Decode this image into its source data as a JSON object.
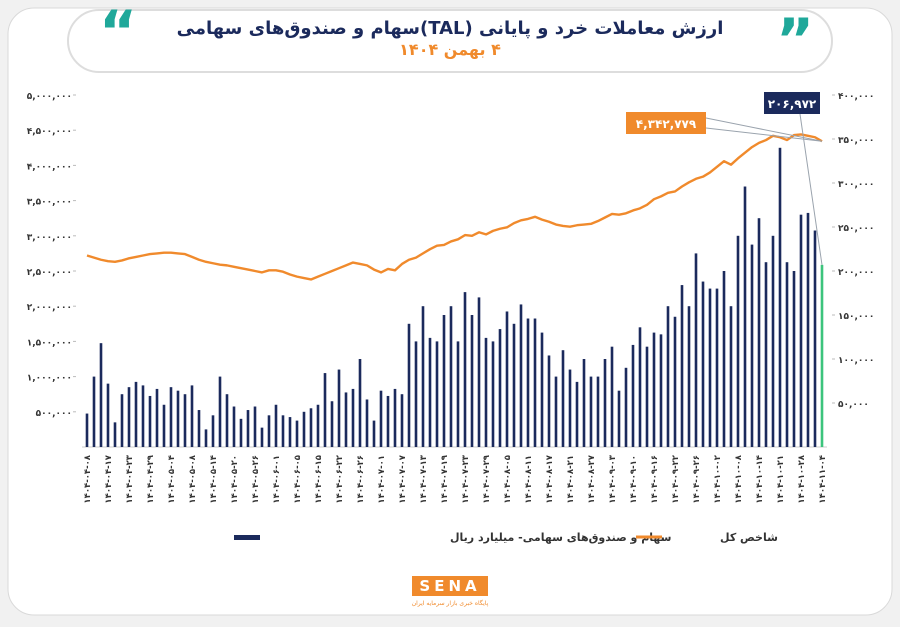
{
  "chart_data": {
    "type": "bar-line",
    "title": "ارزش معاملات خرد و پایانی (TAL)سهام و صندوق‌های سهامی",
    "subtitle": "۴ بهمن ۱۴۰۴",
    "source": "SENA",
    "source_tagline": "پایگاه خبری بازار سرمایه ایران",
    "annotations": [
      "۴,۳۴۲,۷۷۹",
      "۲۰۶,۹۷۲"
    ],
    "categories": [
      "۱۴۰۴-۰۴-۰۸",
      null,
      null,
      "۱۴۰۴-۰۴-۱۷",
      null,
      null,
      "۱۴۰۴-۰۴-۲۳",
      null,
      null,
      "۱۴۰۴-۰۴-۲۹",
      null,
      null,
      "۱۴۰۴-۰۵-۰۴",
      null,
      null,
      "۱۴۰۴-۰۵-۰۸",
      null,
      null,
      "۱۴۰۴-۰۵-۱۴",
      null,
      null,
      "۱۴۰۴-۰۵-۲۰",
      null,
      null,
      "۱۴۰۴-۰۵-۲۶",
      null,
      null,
      "۱۴۰۴-۰۶-۰۱",
      null,
      null,
      "۱۴۰۴-۰۶-۰۵",
      null,
      null,
      "۱۴۰۴-۰۶-۱۵",
      null,
      null,
      "۱۴۰۴-۰۶-۲۲",
      null,
      null,
      "۱۴۰۴-۰۶-۲۶",
      null,
      null,
      "۱۴۰۴-۰۷-۰۱",
      null,
      null,
      "۱۴۰۴-۰۷-۰۷",
      null,
      null,
      "۱۴۰۴-۰۷-۱۳",
      null,
      null,
      "۱۴۰۴-۰۷-۱۹",
      null,
      null,
      "۱۴۰۴-۰۷-۲۳",
      null,
      null,
      "۱۴۰۴-۰۷-۲۹",
      null,
      null,
      "۱۴۰۴-۰۸-۰۵",
      null,
      null,
      "۱۴۰۴-۰۸-۱۱",
      null,
      null,
      "۱۴۰۴-۰۸-۱۷",
      null,
      null,
      "۱۴۰۴-۰۸-۲۱",
      null,
      null,
      "۱۴۰۴-۰۸-۲۷",
      null,
      null,
      "۱۴۰۴-۰۹-۰۳",
      null,
      null,
      "۱۴۰۴-۰۹-۱۰",
      null,
      null,
      "۱۴۰۴-۰۹-۱۶",
      null,
      null,
      "۱۴۰۴-۰۹-۲۲",
      null,
      null,
      "۱۴۰۴-۰۹-۲۶",
      null,
      null,
      "۱۴۰۴-۱۰-۰۲",
      null,
      null,
      "۱۴۰۴-۱۰-۰۸",
      null,
      null,
      "۱۴۰۴-۱۰-۱۴",
      null,
      null,
      "۱۴۰۴-۱۰-۲۱",
      null,
      null,
      "۱۴۰۴-۱۰-۲۸",
      null,
      null,
      "۱۴۰۴-۱۱-۰۴"
    ],
    "series": [
      {
        "name": "سهام و صندوق‌های سهامی- میلیارد ریال",
        "type": "bar",
        "axis": "y2",
        "color": "#1b2a5c",
        "last_color": "#3cc47c",
        "values": [
          38000,
          80000,
          118000,
          72000,
          28000,
          60000,
          68000,
          74000,
          70000,
          58000,
          66000,
          48000,
          68000,
          64000,
          60000,
          70000,
          42000,
          20000,
          36000,
          80000,
          60000,
          46000,
          32000,
          42000,
          46000,
          22000,
          36000,
          48000,
          36000,
          34000,
          30000,
          40000,
          44000,
          48000,
          84000,
          52000,
          88000,
          62000,
          66000,
          100000,
          54000,
          30000,
          64000,
          58000,
          66000,
          60000,
          140000,
          120000,
          160000,
          124000,
          120000,
          150000,
          160000,
          120000,
          176000,
          150000,
          170000,
          124000,
          120000,
          134000,
          154000,
          140000,
          162000,
          146000,
          146000,
          130000,
          104000,
          80000,
          110000,
          88000,
          74000,
          100000,
          80000,
          80000,
          100000,
          114000,
          64000,
          90000,
          116000,
          136000,
          114000,
          130000,
          128000,
          160000,
          148000,
          184000,
          160000,
          220000,
          188000,
          180000,
          180000,
          200000,
          160000,
          240000,
          296000,
          230000,
          260000,
          210000,
          240000,
          340000,
          210000,
          200000,
          264000,
          266000,
          246000,
          206972
        ]
      },
      {
        "name": "شاخص کل",
        "type": "line",
        "axis": "y",
        "color": "#f08a2c",
        "values": [
          2720000,
          2690000,
          2660000,
          2640000,
          2630000,
          2650000,
          2680000,
          2700000,
          2720000,
          2740000,
          2750000,
          2760000,
          2760000,
          2750000,
          2740000,
          2700000,
          2660000,
          2630000,
          2610000,
          2590000,
          2580000,
          2560000,
          2540000,
          2520000,
          2500000,
          2480000,
          2510000,
          2510000,
          2490000,
          2450000,
          2420000,
          2400000,
          2380000,
          2420000,
          2460000,
          2500000,
          2540000,
          2580000,
          2620000,
          2600000,
          2580000,
          2520000,
          2480000,
          2530000,
          2510000,
          2600000,
          2660000,
          2690000,
          2750000,
          2810000,
          2860000,
          2870000,
          2920000,
          2950000,
          3010000,
          3000000,
          3050000,
          3020000,
          3070000,
          3100000,
          3120000,
          3180000,
          3220000,
          3240000,
          3270000,
          3230000,
          3200000,
          3160000,
          3140000,
          3130000,
          3150000,
          3160000,
          3170000,
          3210000,
          3260000,
          3310000,
          3300000,
          3320000,
          3360000,
          3390000,
          3440000,
          3520000,
          3560000,
          3610000,
          3630000,
          3700000,
          3760000,
          3810000,
          3840000,
          3900000,
          3980000,
          4060000,
          4010000,
          4100000,
          4180000,
          4260000,
          4320000,
          4360000,
          4420000,
          4400000,
          4360000,
          4430000,
          4440000,
          4420000,
          4400000,
          4342779
        ]
      }
    ],
    "ylim": [
      0,
      5000000
    ],
    "yticks": [
      {
        "value": 500000,
        "label": "۵۰۰,۰۰۰"
      },
      {
        "value": 1000000,
        "label": "۱,۰۰۰,۰۰۰"
      },
      {
        "value": 1500000,
        "label": "۱,۵۰۰,۰۰۰"
      },
      {
        "value": 2000000,
        "label": "۲,۰۰۰,۰۰۰"
      },
      {
        "value": 2500000,
        "label": "۲,۵۰۰,۰۰۰"
      },
      {
        "value": 3000000,
        "label": "۳,۰۰۰,۰۰۰"
      },
      {
        "value": 3500000,
        "label": "۳,۵۰۰,۰۰۰"
      },
      {
        "value": 4000000,
        "label": "۴,۰۰۰,۰۰۰"
      },
      {
        "value": 4500000,
        "label": "۴,۵۰۰,۰۰۰"
      },
      {
        "value": 5000000,
        "label": "۵,۰۰۰,۰۰۰"
      }
    ],
    "y2lim": [
      0,
      400000
    ],
    "y2ticks": [
      {
        "value": 50000,
        "label": "۵۰,۰۰۰"
      },
      {
        "value": 100000,
        "label": "۱۰۰,۰۰۰"
      },
      {
        "value": 150000,
        "label": "۱۵۰,۰۰۰"
      },
      {
        "value": 200000,
        "label": "۲۰۰,۰۰۰"
      },
      {
        "value": 250000,
        "label": "۲۵۰,۰۰۰"
      },
      {
        "value": 300000,
        "label": "۳۰۰,۰۰۰"
      },
      {
        "value": 350000,
        "label": "۳۵۰,۰۰۰"
      },
      {
        "value": 400000,
        "label": "۴۰۰,۰۰۰"
      }
    ],
    "grid": false
  }
}
